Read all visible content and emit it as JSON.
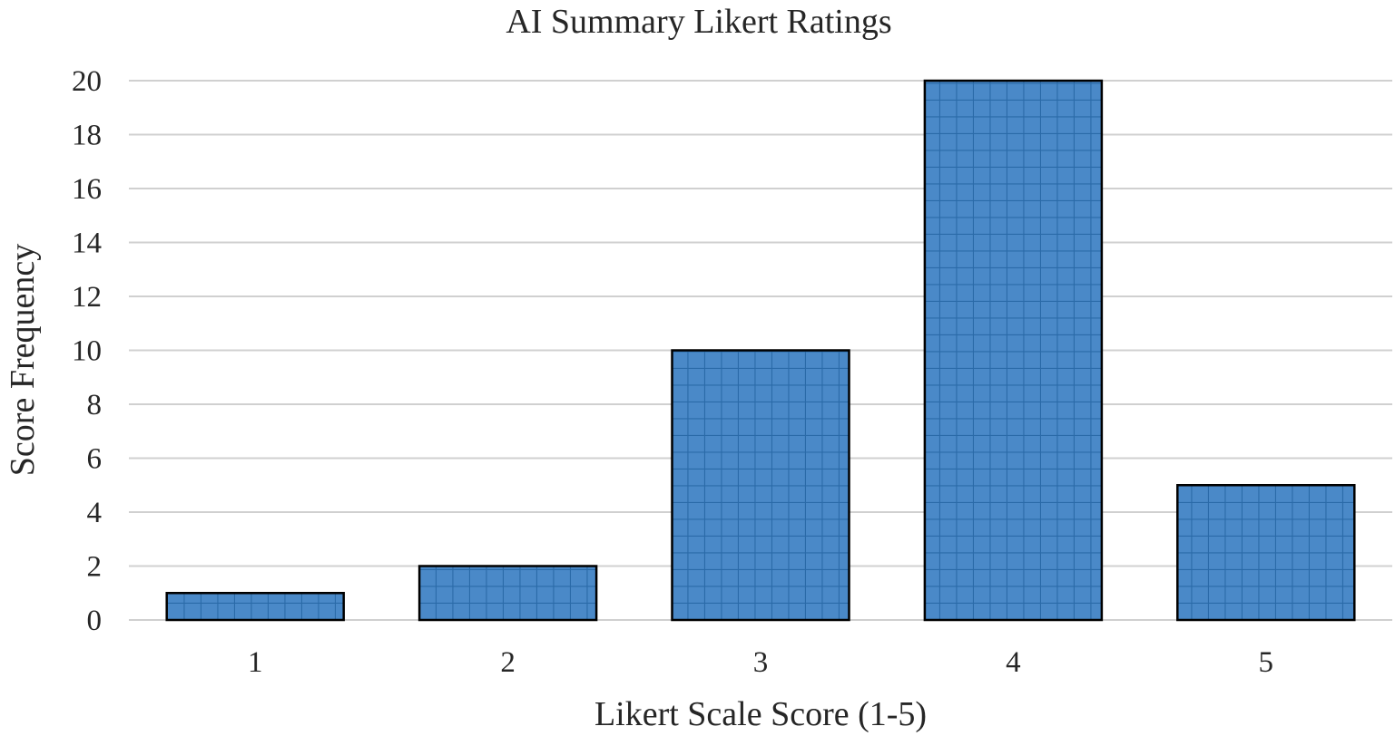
{
  "chart_data": {
    "type": "bar",
    "title": "AI Summary Likert Ratings",
    "xlabel": "Likert Scale Score (1-5)",
    "ylabel": "Score Frequency",
    "categories": [
      "1",
      "2",
      "3",
      "4",
      "5"
    ],
    "values": [
      1,
      2,
      10,
      20,
      5
    ],
    "ylim": [
      0,
      20
    ],
    "yticks": [
      "0",
      "2",
      "4",
      "6",
      "8",
      "10",
      "12",
      "14",
      "16",
      "18",
      "20"
    ],
    "grid": true,
    "legend": "none",
    "bar_fill": "grid-pattern",
    "colors": {
      "bar": "#4a89c8",
      "bar_pattern_lines": "#2a6aa8",
      "bar_outline": "#000000",
      "gridline": "#d0d0d0",
      "text": "#262626"
    }
  }
}
